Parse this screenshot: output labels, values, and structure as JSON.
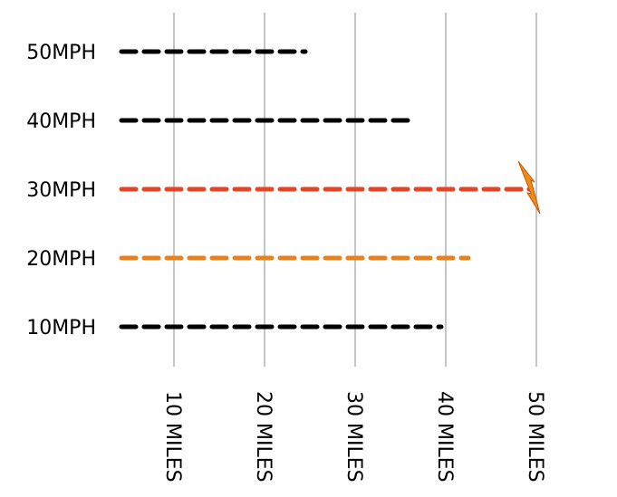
{
  "chart_data": {
    "type": "bar",
    "categories": [
      "10MPH",
      "20MPH",
      "30MPH",
      "40MPH",
      "50MPH"
    ],
    "values": [
      39.5,
      42.5,
      49.5,
      36.5,
      24.5
    ],
    "x_ticks": [
      {
        "value": 10,
        "label": "10 MILES"
      },
      {
        "value": 20,
        "label": "20 MILES"
      },
      {
        "value": 30,
        "label": "30 MILES"
      },
      {
        "value": 40,
        "label": "40 MILES"
      },
      {
        "value": 50,
        "label": "50 MILES"
      }
    ],
    "xlim": [
      4.2,
      50
    ],
    "grid": "vertical",
    "bar_style": "dashed-line",
    "bar_colors": [
      "#000000",
      "#e8811d",
      "#e64525",
      "#000000",
      "#000000"
    ],
    "annotations": [
      {
        "type": "lightning-bolt-icon",
        "category": "30MPH",
        "x": 50,
        "color": "#f08a14",
        "stroke": "#c05a10"
      }
    ],
    "title": "",
    "xlabel": "",
    "ylabel": ""
  }
}
